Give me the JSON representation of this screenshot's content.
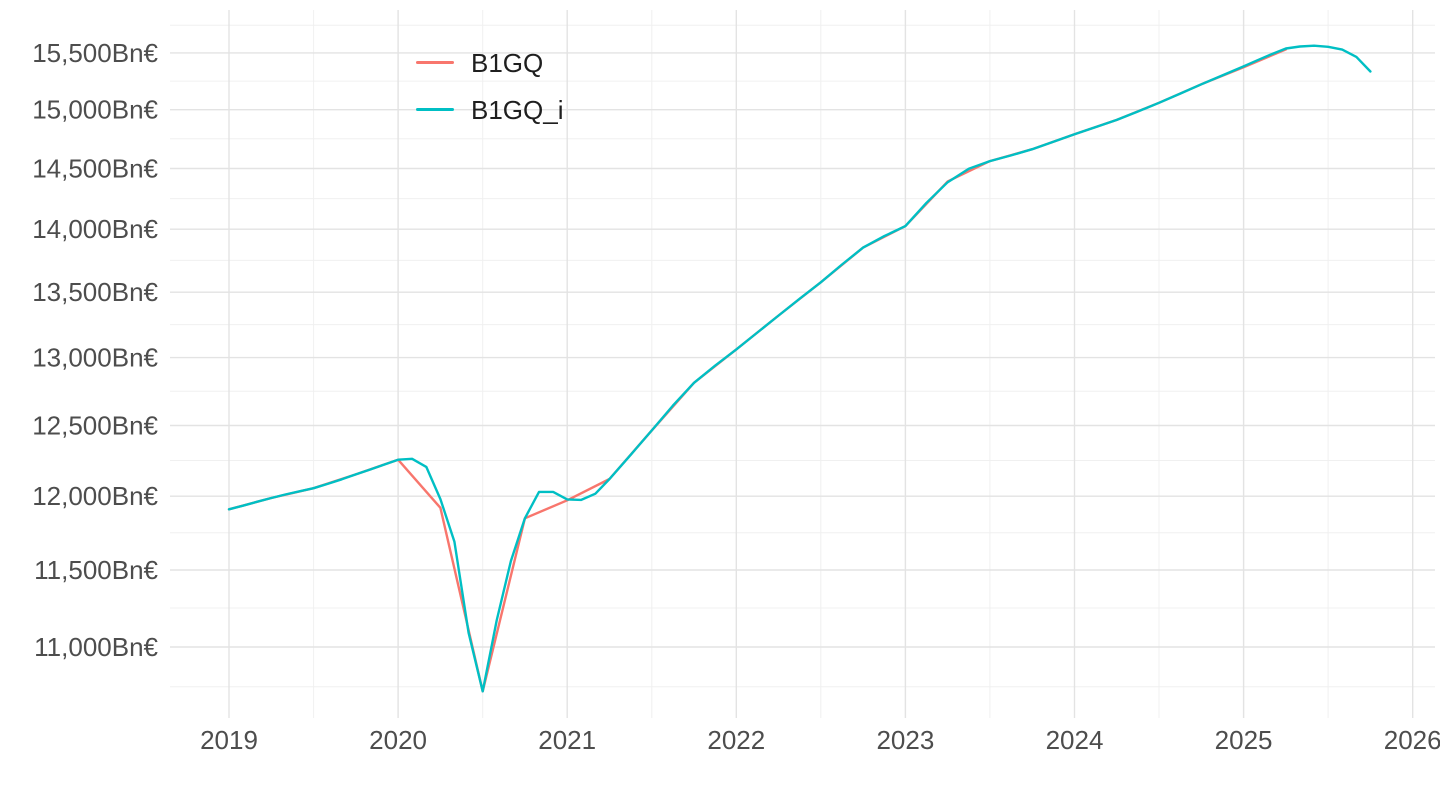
{
  "chart_data": {
    "type": "line",
    "title": "",
    "xlabel": "",
    "ylabel": "",
    "unit_suffix": "Bn€",
    "grid": true,
    "legend_position": "inset top-left",
    "x_domain": [
      2018.651,
      2026.132
    ],
    "y_domain": [
      10558,
      15889
    ],
    "y_scale": "log10",
    "x_ticks": [
      2019,
      2020,
      2021,
      2022,
      2023,
      2024,
      2025,
      2026
    ],
    "x_tick_labels": [
      "2019",
      "2020",
      "2021",
      "2022",
      "2023",
      "2024",
      "2025",
      "2026"
    ],
    "x_minor_ticks": [
      2019.5,
      2020.5,
      2021.5,
      2022.5,
      2023.5,
      2024.5,
      2025.5
    ],
    "y_ticks": [
      11000,
      11500,
      12000,
      12500,
      13000,
      13500,
      14000,
      14500,
      15000,
      15500
    ],
    "y_tick_labels": [
      "11,000Bn€",
      "11,500Bn€",
      "12,000Bn€",
      "12,500Bn€",
      "13,000Bn€",
      "13,500Bn€",
      "14,000Bn€",
      "14,500Bn€",
      "15,000Bn€",
      "15,500Bn€"
    ],
    "y_minor_ticks": [
      10750,
      11250,
      11750,
      12250,
      12750,
      13250,
      13750,
      14250,
      14750,
      15250,
      15750
    ],
    "colors": {
      "grid_major": "#e3e3e3",
      "grid_minor": "#f0f0f0",
      "axis_text": "#4d4d4d",
      "legend_text": "#1f1f1f",
      "background": "#ffffff"
    },
    "legend": {
      "items": [
        {
          "label": "B1GQ",
          "color": "#F8766D"
        },
        {
          "label": "B1GQ_i",
          "color": "#00BFC4"
        }
      ]
    },
    "series": [
      {
        "name": "B1GQ",
        "color": "#F8766D",
        "points": [
          [
            2019.0,
            11910
          ],
          [
            2019.25,
            11988
          ],
          [
            2019.5,
            12056
          ],
          [
            2019.75,
            12152
          ],
          [
            2020.0,
            12256
          ],
          [
            2020.25,
            11920
          ],
          [
            2020.5,
            10722
          ],
          [
            2020.75,
            11848
          ],
          [
            2021.0,
            11972
          ],
          [
            2021.25,
            12120
          ],
          [
            2021.5,
            12465
          ],
          [
            2021.75,
            12812
          ],
          [
            2022.0,
            13062
          ],
          [
            2022.25,
            13320
          ],
          [
            2022.5,
            13578
          ],
          [
            2022.75,
            13852
          ],
          [
            2023.0,
            14025
          ],
          [
            2023.25,
            14392
          ],
          [
            2023.5,
            14562
          ],
          [
            2023.75,
            14662
          ],
          [
            2024.0,
            14790
          ],
          [
            2024.25,
            14912
          ],
          [
            2024.5,
            15060
          ],
          [
            2024.75,
            15222
          ],
          [
            2025.0,
            15372
          ],
          [
            2025.25,
            15532
          ]
        ]
      },
      {
        "name": "B1GQ_i",
        "color": "#00BFC4",
        "points": [
          [
            2019.0,
            11910
          ],
          [
            2019.083,
            11935
          ],
          [
            2019.167,
            11962
          ],
          [
            2019.25,
            11988
          ],
          [
            2019.333,
            12012
          ],
          [
            2019.417,
            12034
          ],
          [
            2019.5,
            12056
          ],
          [
            2019.583,
            12086
          ],
          [
            2019.667,
            12118
          ],
          [
            2019.75,
            12152
          ],
          [
            2019.833,
            12186
          ],
          [
            2019.917,
            12221
          ],
          [
            2020.0,
            12256
          ],
          [
            2020.083,
            12262
          ],
          [
            2020.167,
            12205
          ],
          [
            2020.25,
            11980
          ],
          [
            2020.333,
            11690
          ],
          [
            2020.417,
            11090
          ],
          [
            2020.5,
            10722
          ],
          [
            2020.583,
            11170
          ],
          [
            2020.667,
            11560
          ],
          [
            2020.75,
            11848
          ],
          [
            2020.833,
            12030
          ],
          [
            2020.917,
            12030
          ],
          [
            2021.0,
            11978
          ],
          [
            2021.083,
            11975
          ],
          [
            2021.167,
            12018
          ],
          [
            2021.25,
            12120
          ],
          [
            2021.375,
            12290
          ],
          [
            2021.5,
            12465
          ],
          [
            2021.625,
            12645
          ],
          [
            2021.75,
            12812
          ],
          [
            2021.875,
            12940
          ],
          [
            2022.0,
            13062
          ],
          [
            2022.125,
            13190
          ],
          [
            2022.25,
            13320
          ],
          [
            2022.375,
            13450
          ],
          [
            2022.5,
            13578
          ],
          [
            2022.625,
            13718
          ],
          [
            2022.75,
            13852
          ],
          [
            2022.875,
            13945
          ],
          [
            2023.0,
            14025
          ],
          [
            2023.125,
            14215
          ],
          [
            2023.25,
            14385
          ],
          [
            2023.375,
            14498
          ],
          [
            2023.5,
            14562
          ],
          [
            2023.625,
            14610
          ],
          [
            2023.75,
            14662
          ],
          [
            2023.875,
            14725
          ],
          [
            2024.0,
            14790
          ],
          [
            2024.125,
            14850
          ],
          [
            2024.25,
            14912
          ],
          [
            2024.375,
            14985
          ],
          [
            2024.5,
            15060
          ],
          [
            2024.625,
            15140
          ],
          [
            2024.75,
            15222
          ],
          [
            2024.875,
            15300
          ],
          [
            2025.0,
            15380
          ],
          [
            2025.083,
            15435
          ],
          [
            2025.167,
            15490
          ],
          [
            2025.25,
            15540
          ],
          [
            2025.333,
            15558
          ],
          [
            2025.417,
            15565
          ],
          [
            2025.5,
            15555
          ],
          [
            2025.583,
            15530
          ],
          [
            2025.667,
            15465
          ],
          [
            2025.75,
            15335
          ]
        ]
      }
    ]
  }
}
